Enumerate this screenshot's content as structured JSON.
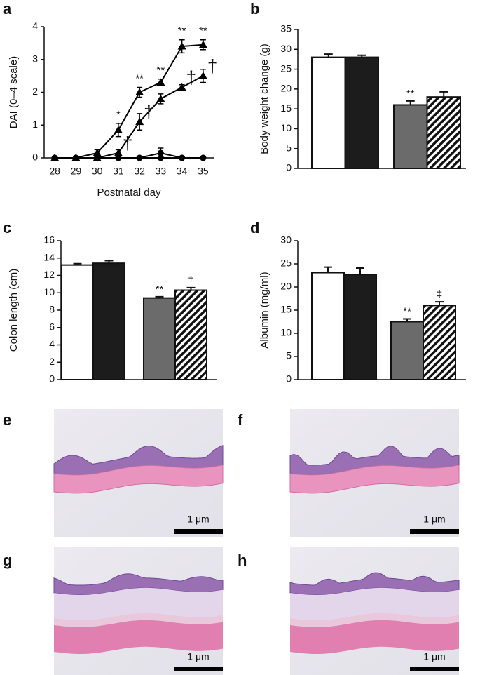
{
  "chart_data": [
    {
      "type": "line",
      "panel_label": "a",
      "ylabel": "DAI (0–4 scale)",
      "xlabel": "Postnatal day",
      "x": [
        28,
        29,
        30,
        31,
        32,
        33,
        34,
        35
      ],
      "xlim": [
        27.5,
        35.5
      ],
      "xticks": [
        28,
        29,
        30,
        31,
        32,
        33,
        34,
        35
      ],
      "ylim": [
        0,
        4
      ],
      "yticks": [
        0,
        1,
        2,
        3,
        4
      ],
      "series": [
        {
          "color": "#000000",
          "marker": "triangle",
          "values": [
            0,
            0,
            0.15,
            0.85,
            2.0,
            2.3,
            3.4,
            3.45
          ],
          "errors": [
            0,
            0,
            0.1,
            0.2,
            0.15,
            0.1,
            0.2,
            0.15
          ],
          "significance": [
            null,
            null,
            null,
            "*",
            "**",
            "**",
            "**",
            "**"
          ],
          "significance_position": "above"
        },
        {
          "color": "#000000",
          "marker": "triangle",
          "values": [
            0,
            0,
            0,
            0.15,
            1.1,
            1.8,
            2.15,
            2.5
          ],
          "errors": [
            0,
            0,
            0,
            0.1,
            0.25,
            0.15,
            0.08,
            0.2
          ],
          "significance": [
            null,
            null,
            null,
            "†",
            "†",
            null,
            "†",
            "†"
          ],
          "significance_position": "right"
        },
        {
          "color": "#000000",
          "marker": "circle",
          "values": [
            0,
            0,
            0,
            0,
            0,
            0.15,
            0,
            0
          ],
          "errors": [
            0,
            0,
            0,
            0,
            0,
            0.15,
            0,
            0
          ]
        },
        {
          "color": "#000000",
          "marker": "circle",
          "values": [
            0,
            0,
            0,
            0,
            0,
            0,
            0,
            0
          ],
          "errors": [
            0,
            0,
            0,
            0,
            0,
            0,
            0,
            0
          ]
        }
      ]
    },
    {
      "type": "bar",
      "panel_label": "b",
      "ylabel": "Body weight change (g)",
      "ylim": [
        0,
        35
      ],
      "yticks": [
        0,
        5,
        10,
        15,
        20,
        25,
        30,
        35
      ],
      "values": [
        28,
        28,
        16,
        18
      ],
      "errors": [
        0.8,
        0.5,
        1.0,
        1.3
      ],
      "fills": [
        "#ffffff",
        "#1c1c1c",
        "#6b6b6b",
        "hatch"
      ],
      "significance": [
        null,
        null,
        "**",
        null
      ]
    },
    {
      "type": "bar",
      "panel_label": "c",
      "ylabel": "Colon length (cm)",
      "ylim": [
        0,
        16
      ],
      "yticks": [
        0,
        2,
        4,
        6,
        8,
        10,
        12,
        14,
        16
      ],
      "values": [
        13.2,
        13.4,
        9.4,
        10.3
      ],
      "errors": [
        0.15,
        0.3,
        0.15,
        0.3
      ],
      "fills": [
        "#ffffff",
        "#1c1c1c",
        "#6b6b6b",
        "hatch"
      ],
      "significance": [
        null,
        null,
        "**",
        "†"
      ]
    },
    {
      "type": "bar",
      "panel_label": "d",
      "ylabel": "Albumin (mg/ml)",
      "ylim": [
        0,
        30
      ],
      "yticks": [
        0,
        5,
        10,
        15,
        20,
        25,
        30
      ],
      "values": [
        23.1,
        22.7,
        12.5,
        16.0
      ],
      "errors": [
        1.2,
        1.4,
        0.6,
        0.8
      ],
      "fills": [
        "#ffffff",
        "#1c1c1c",
        "#6b6b6b",
        "hatch"
      ],
      "significance": [
        null,
        null,
        "**",
        "‡"
      ]
    }
  ],
  "micrographs": [
    {
      "panel_label": "e",
      "scale_bar": "1 μm"
    },
    {
      "panel_label": "f",
      "scale_bar": "1 μm"
    },
    {
      "panel_label": "g",
      "scale_bar": "1 μm"
    },
    {
      "panel_label": "h",
      "scale_bar": "1 μm"
    }
  ]
}
